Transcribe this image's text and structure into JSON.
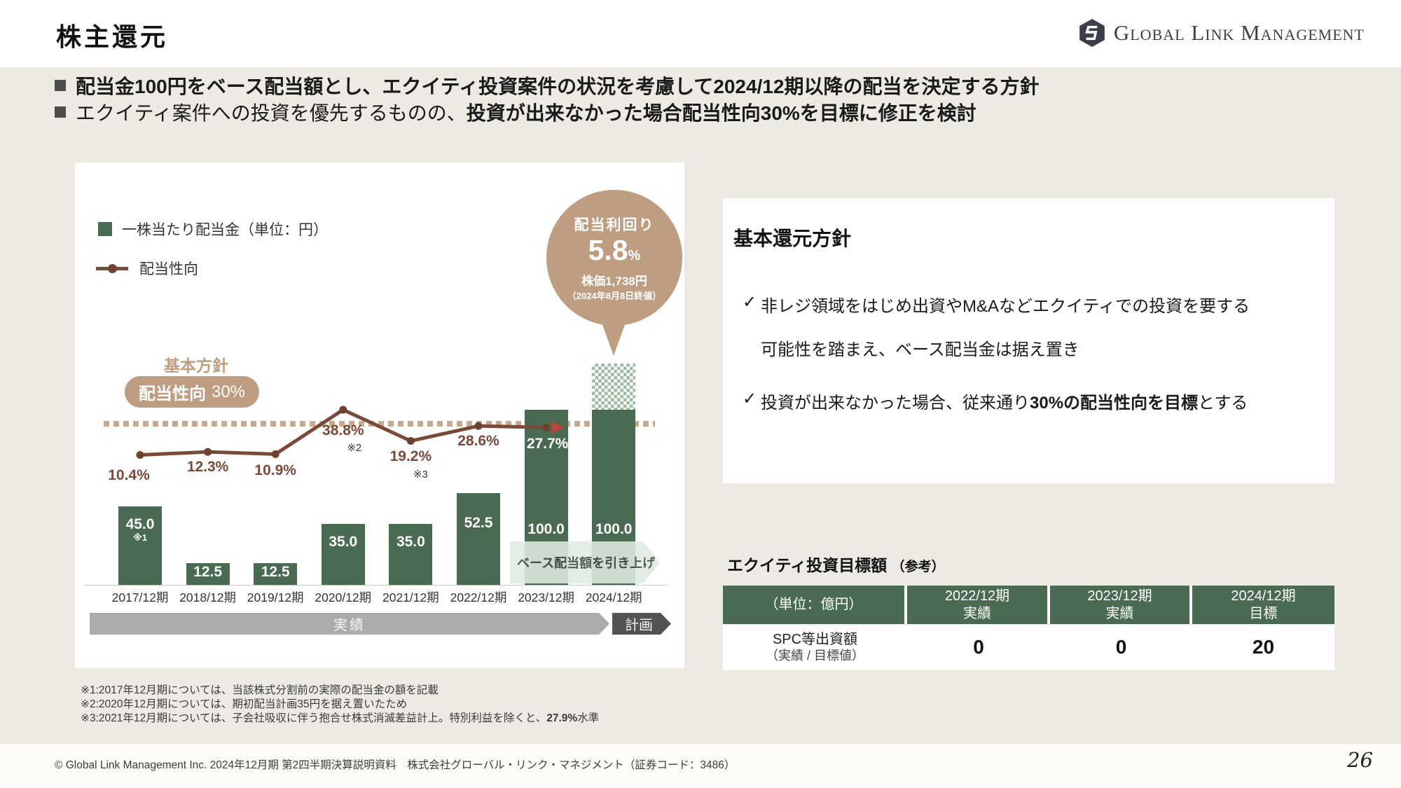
{
  "header": {
    "title": "株主還元",
    "logo_text": "Global Link Management"
  },
  "bullets": [
    {
      "pre": "",
      "bold": "配当金100円をベース配当額とし、エクイティ投資案件の状況を考慮して2024/12期以降の配当を決定する方針"
    },
    {
      "pre": "エクイティ案件への投資を優先するものの、",
      "bold": "投資が出来なかった場合配当性向30%を目標に修正を検討"
    }
  ],
  "chart_data": {
    "type": "bar",
    "categories": [
      "2017/12期",
      "2018/12期",
      "2019/12期",
      "2020/12期",
      "2021/12期",
      "2022/12期",
      "2023/12期",
      "2024/12期"
    ],
    "series": [
      {
        "name": "一株当たり配当金（単位：円）",
        "type": "bar",
        "values": [
          45.0,
          12.5,
          12.5,
          35.0,
          35.0,
          52.5,
          100.0,
          100.0
        ],
        "value_labels": [
          "45.0",
          "12.5",
          "12.5",
          "35.0",
          "35.0",
          "52.5",
          "100.0",
          "100.0"
        ],
        "value_notes": {
          "0": "※1"
        },
        "plan_upside_segment": {
          "category": "2024/12期",
          "approx_units": 26.5,
          "style": "hatched"
        }
      },
      {
        "name": "配当性向",
        "type": "line",
        "values": [
          10.4,
          12.3,
          10.9,
          38.8,
          19.2,
          28.6,
          27.7,
          null
        ],
        "point_labels": [
          "10.4%",
          "12.3%",
          "10.9%",
          "38.8%",
          "19.2%",
          "28.6%",
          "27.7%"
        ],
        "point_notes": {
          "3": "※2",
          "4": "※3"
        }
      }
    ],
    "reference_line": {
      "value": 30,
      "caption": "基本方針",
      "pill_bold": "配当性向",
      "pill_value": "30%"
    },
    "callout": {
      "title": "配当利回り",
      "value": "5.8",
      "unit": "%",
      "price_line": "株価1,738円",
      "date_line": "（2024年8月8日終値）"
    },
    "plan_arrow_label": "ベース配当額を引き上げ",
    "period_bands": [
      {
        "label": "実績"
      },
      {
        "label": "計画"
      }
    ],
    "bar_unit": "円",
    "line_unit": "%",
    "grid": false,
    "legend_position": "top-left"
  },
  "footnotes": [
    {
      "pre": "※1:2017年12月期については、当該株式分割前の実際の配当金の額を記載",
      "bold": "",
      "post": ""
    },
    {
      "pre": "※2:2020年12月期については、期初配当計画35円を据え置いたため",
      "bold": "",
      "post": ""
    },
    {
      "pre": "※3:2021年12月期については、子会社吸収に伴う抱合せ株式消滅差益計上。特別利益を除くと、",
      "bold": "27.9%",
      "post": "水準"
    }
  ],
  "policy_panel": {
    "title": "基本還元方針",
    "items": [
      {
        "lines": [
          {
            "pre": "非レジ領域をはじめ出資やM&Aなどエクイティでの投資を要する",
            "bold": "",
            "post": ""
          },
          {
            "pre": "可能性を踏まえ、ベース配当金は据え置き",
            "bold": "",
            "post": ""
          }
        ]
      },
      {
        "lines": [
          {
            "pre": "投資が出来なかった場合、従来通り",
            "bold": "30%の配当性向を目標",
            "post": "とする"
          }
        ]
      }
    ]
  },
  "equity_panel": {
    "title_main": "エクイティ投資目標額",
    "title_sub": "（参考）",
    "table": {
      "unit_header": "（単位：億円）",
      "columns": [
        {
          "line1": "2022/12期",
          "line2": "実績"
        },
        {
          "line1": "2023/12期",
          "line2": "実績"
        },
        {
          "line1": "2024/12期",
          "line2": "目標"
        }
      ],
      "row_label_line1": "SPC等出資額",
      "row_label_line2": "（実績 / 目標値）",
      "values": [
        "0",
        "0",
        "20"
      ]
    }
  },
  "footer": {
    "copyright": "© Global Link Management Inc. 2024年12月期 第2四半期決算説明資料　株式会社グローバル・リンク・マネジメント（証券コード：3486）",
    "page_number": "26"
  },
  "colors": {
    "green": "#4A6B51",
    "brown": "#7B4938",
    "brownDark": "#6E4130",
    "tan": "#BE9D80",
    "tanDot": "#C8A98C",
    "hatch": "#9CBCA2",
    "paleGreen": "#DFECE1",
    "arrowRed": "#B4483B",
    "grayBand": "#ABABAB",
    "darkBand": "#535353",
    "bg": "#EDEAE3"
  }
}
